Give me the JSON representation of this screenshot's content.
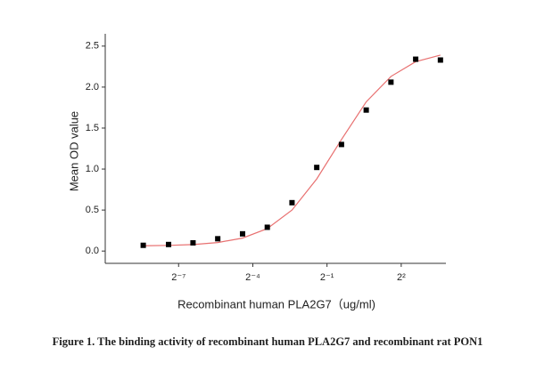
{
  "chart_data": {
    "type": "scatter",
    "xlabel": "Recombinant human PLA2G7（ug/ml)",
    "ylabel": "Mean OD value",
    "caption": "Figure 1. The binding activity of recombinant human PLA2G7 and recombinant rat PON1",
    "xscale": "log",
    "logbase": 2,
    "xlim": [
      0.001,
      14
    ],
    "xticks": [
      {
        "value": 0.0078125,
        "label": "2⁻⁷"
      },
      {
        "value": 0.0625,
        "label": "2⁻⁴"
      },
      {
        "value": 0.5,
        "label": "2⁻¹"
      },
      {
        "value": 4,
        "label": "2²"
      }
    ],
    "ylim": [
      -0.15,
      2.65
    ],
    "yticks": [
      {
        "value": 0,
        "label": "0.0"
      },
      0.5,
      {
        "value": 1,
        "label": "1.0"
      },
      1.5,
      {
        "value": 2,
        "label": "2.0"
      },
      2.5
    ],
    "series": [
      {
        "kind": "points",
        "color": "#000000",
        "x": [
          0.0029,
          0.0059,
          0.0117,
          0.0234,
          0.0469,
          0.0938,
          0.1875,
          0.375,
          0.75,
          1.5,
          3,
          6,
          12
        ],
        "values": [
          0.07,
          0.08,
          0.1,
          0.15,
          0.21,
          0.29,
          0.59,
          1.02,
          1.3,
          1.72,
          2.06,
          2.34,
          2.33
        ]
      },
      {
        "kind": "line",
        "color": "#e87070",
        "x": [
          0.0029,
          0.0059,
          0.0117,
          0.0234,
          0.0469,
          0.0938,
          0.1875,
          0.375,
          0.75,
          1.5,
          3,
          6,
          12
        ],
        "values": [
          0.064,
          0.069,
          0.079,
          0.104,
          0.158,
          0.274,
          0.5,
          0.88,
          1.36,
          1.82,
          2.13,
          2.31,
          2.39
        ]
      }
    ]
  }
}
